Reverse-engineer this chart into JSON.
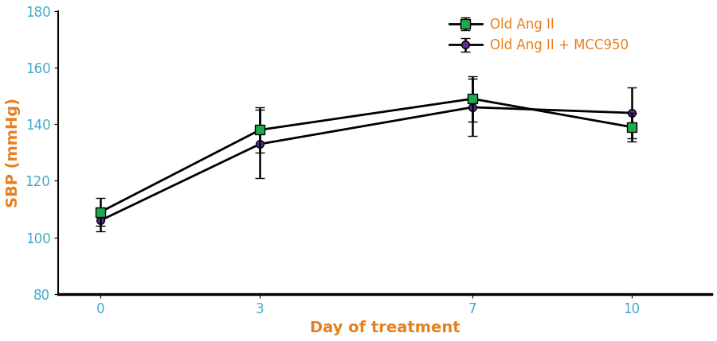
{
  "days": [
    0,
    3,
    7,
    10
  ],
  "series1_name": "Old Ang II",
  "series1_mean": [
    109,
    138,
    149,
    139
  ],
  "series1_sem": [
    5,
    8,
    8,
    5
  ],
  "series1_color": "#1faa4e",
  "series1_line_color": "#000000",
  "series1_marker": "s",
  "series2_name": "Old Ang II + MCC950",
  "series2_mean": [
    106,
    133,
    146,
    144
  ],
  "series2_sem": [
    4,
    12,
    10,
    9
  ],
  "series2_color": "#5b2d8e",
  "series2_line_color": "#000000",
  "series2_marker": "o",
  "xlabel": "Day of treatment",
  "ylabel": "SBP (mmHg)",
  "ylim": [
    80,
    180
  ],
  "yticks": [
    80,
    100,
    120,
    140,
    160,
    180
  ],
  "xticks": [
    0,
    3,
    7,
    10
  ],
  "tick_label_color": "#3fa9c8",
  "axis_label_color": "#e87f1e",
  "legend_text_color": "#e87f1e",
  "legend_fontsize": 12,
  "axis_label_fontsize": 14,
  "tick_fontsize": 12,
  "linewidth": 2.0,
  "markersize": 8,
  "capsize": 4,
  "capthick": 1.8,
  "elinewidth": 1.8
}
